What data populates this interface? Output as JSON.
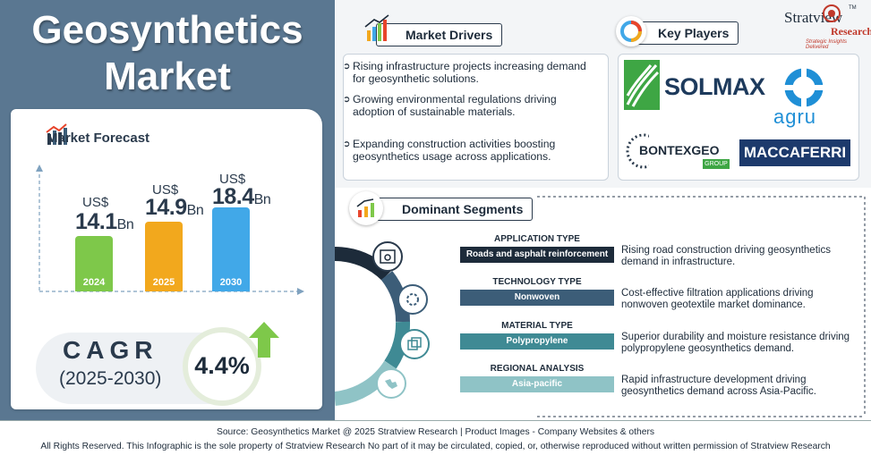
{
  "title": {
    "line1": "Geosynthetics",
    "line2": "Market"
  },
  "forecast": {
    "heading": "Market Forecast",
    "bars": [
      {
        "year": "2024",
        "currency": "US$",
        "value": "14.1",
        "unit": "Bn",
        "color": "#7ec84a"
      },
      {
        "year": "2025",
        "currency": "US$",
        "value": "14.9",
        "unit": "Bn",
        "color": "#f2a81d"
      },
      {
        "year": "2030",
        "currency": "US$",
        "value": "18.4",
        "unit": "Bn",
        "color": "#41a8e8"
      }
    ]
  },
  "cagr": {
    "label": "CAGR",
    "years": "(2025-2030)",
    "value": "4.4%"
  },
  "drivers": {
    "heading": "Market Drivers",
    "items": [
      "Rising infrastructure projects increasing demand for geosynthetic solutions.",
      "Growing environmental regulations driving adoption of sustainable materials.",
      "Expanding construction activities boosting geosynthetics usage across applications."
    ]
  },
  "players": {
    "heading": "Key Players",
    "logos": [
      "SOLMAX",
      "agru",
      "BONTEXGEO",
      "GROUP",
      "MACCAFERRI"
    ]
  },
  "brand": {
    "name": "Stratview",
    "sub": "Research",
    "tm": "TM",
    "tagline": "Strategic Insights Delivered"
  },
  "segments": {
    "heading": "Dominant Segments",
    "items": [
      {
        "type": "APPLICATION TYPE",
        "value": "Roads and asphalt reinforcement",
        "desc": "Rising road construction driving geosynthetics demand in infrastructure.",
        "color": "#1d2b3a",
        "text_color": "#ffffff"
      },
      {
        "type": "TECHNOLOGY TYPE",
        "value": "Nonwoven",
        "desc": "Cost-effective filtration applications driving nonwoven geotextile market dominance.",
        "color": "#3c5d78",
        "text_color": "#ffffff"
      },
      {
        "type": "MATERIAL TYPE",
        "value": "Polypropylene",
        "desc": "Superior durability and moisture resistance driving polypropylene geosynthetics demand.",
        "color": "#3f8a94",
        "text_color": "#ffffff"
      },
      {
        "type": "REGIONAL ANALYSIS",
        "value": "Asia-pacific",
        "desc": "Rapid infrastructure development driving geosynthetics demand across Asia-Pacific.",
        "color": "#8fc3c6",
        "text_color": "#ffffff"
      }
    ]
  },
  "footer": {
    "line1": "Source:  Geosynthetics Market @ 2025 Stratview Research | Product Images  - Company Websites & others",
    "line2": "All Rights Reserved. This Infographic is the sole property of Stratview Research  No part of it may be circulated, copied, or, otherwise reproduced without written permission of Stratview Research"
  }
}
